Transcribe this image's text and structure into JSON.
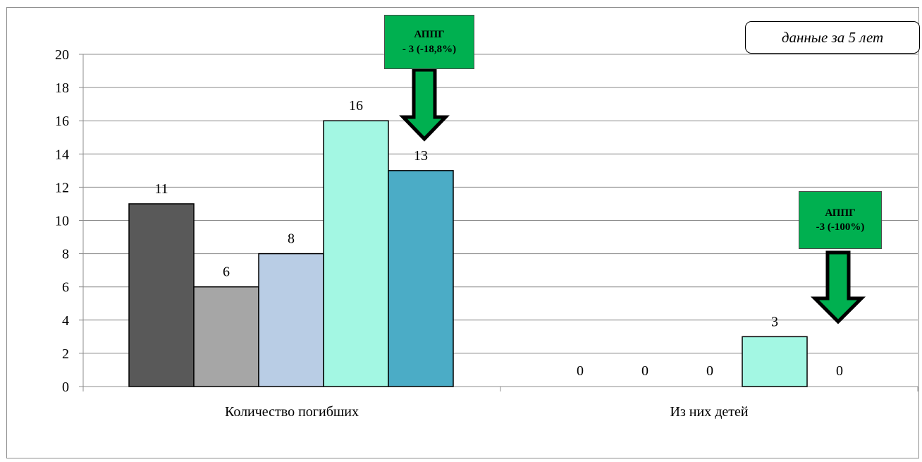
{
  "chart_data": {
    "type": "bar",
    "categories": [
      "Количество погибших",
      "Из них детей"
    ],
    "series": [
      {
        "values": [
          11,
          0
        ],
        "color": "#595959"
      },
      {
        "values": [
          6,
          0
        ],
        "color": "#a6a6a6"
      },
      {
        "values": [
          8,
          0
        ],
        "color": "#b9cde5"
      },
      {
        "values": [
          16,
          3
        ],
        "color": "#a3f7e3"
      },
      {
        "values": [
          13,
          0
        ],
        "color": "#4bacc6"
      }
    ],
    "ylim": [
      0,
      20
    ],
    "yticks": [
      0,
      2,
      4,
      6,
      8,
      10,
      12,
      14,
      16,
      18,
      20
    ],
    "grid": true,
    "data_labels": true
  },
  "note": "данные за 5 лет",
  "callouts": [
    {
      "line1": "АППГ",
      "line2": "- 3 (-18,8%)",
      "color": "#00b050"
    },
    {
      "line1": "АППГ",
      "line2": "-3 (-100%)",
      "color": "#00b050"
    }
  ]
}
